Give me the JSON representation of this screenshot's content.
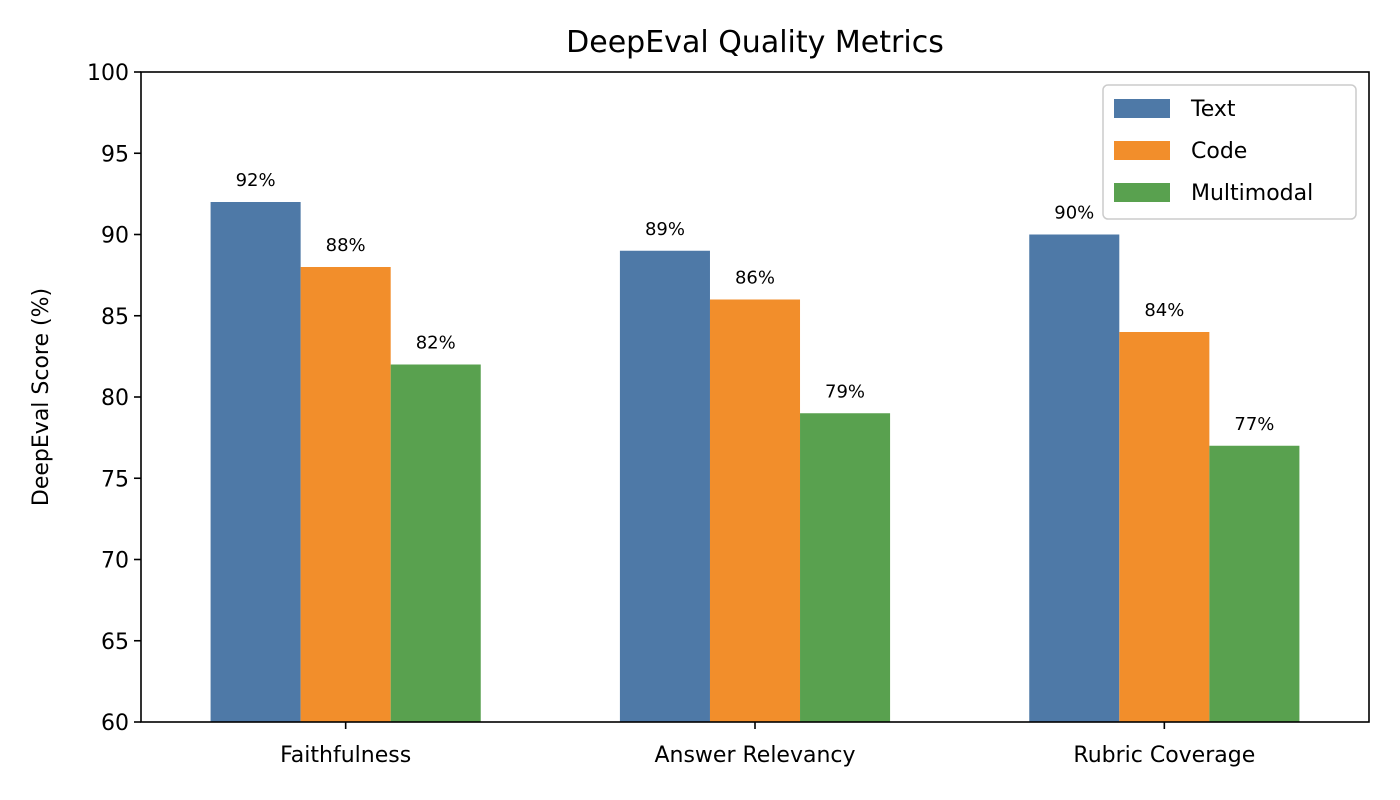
{
  "chart_data": {
    "type": "bar",
    "title": "DeepEval Quality Metrics",
    "xlabel": "",
    "ylabel": "DeepEval Score (%)",
    "ylim": [
      60,
      100
    ],
    "yticks": [
      60,
      65,
      70,
      75,
      80,
      85,
      90,
      95,
      100
    ],
    "categories": [
      "Faithfulness",
      "Answer Relevancy",
      "Rubric Coverage"
    ],
    "series": [
      {
        "name": "Text",
        "color": "#4e79a7",
        "values": [
          92,
          89,
          90
        ],
        "labels": [
          "92%",
          "89%",
          "90%"
        ]
      },
      {
        "name": "Code",
        "color": "#f28e2b",
        "values": [
          88,
          86,
          84
        ],
        "labels": [
          "88%",
          "86%",
          "84%"
        ]
      },
      {
        "name": "Multimodal",
        "color": "#59a14f",
        "values": [
          82,
          79,
          77
        ],
        "labels": [
          "82%",
          "79%",
          "77%"
        ]
      }
    ],
    "legend": {
      "position": "upper right"
    },
    "grid": false
  }
}
